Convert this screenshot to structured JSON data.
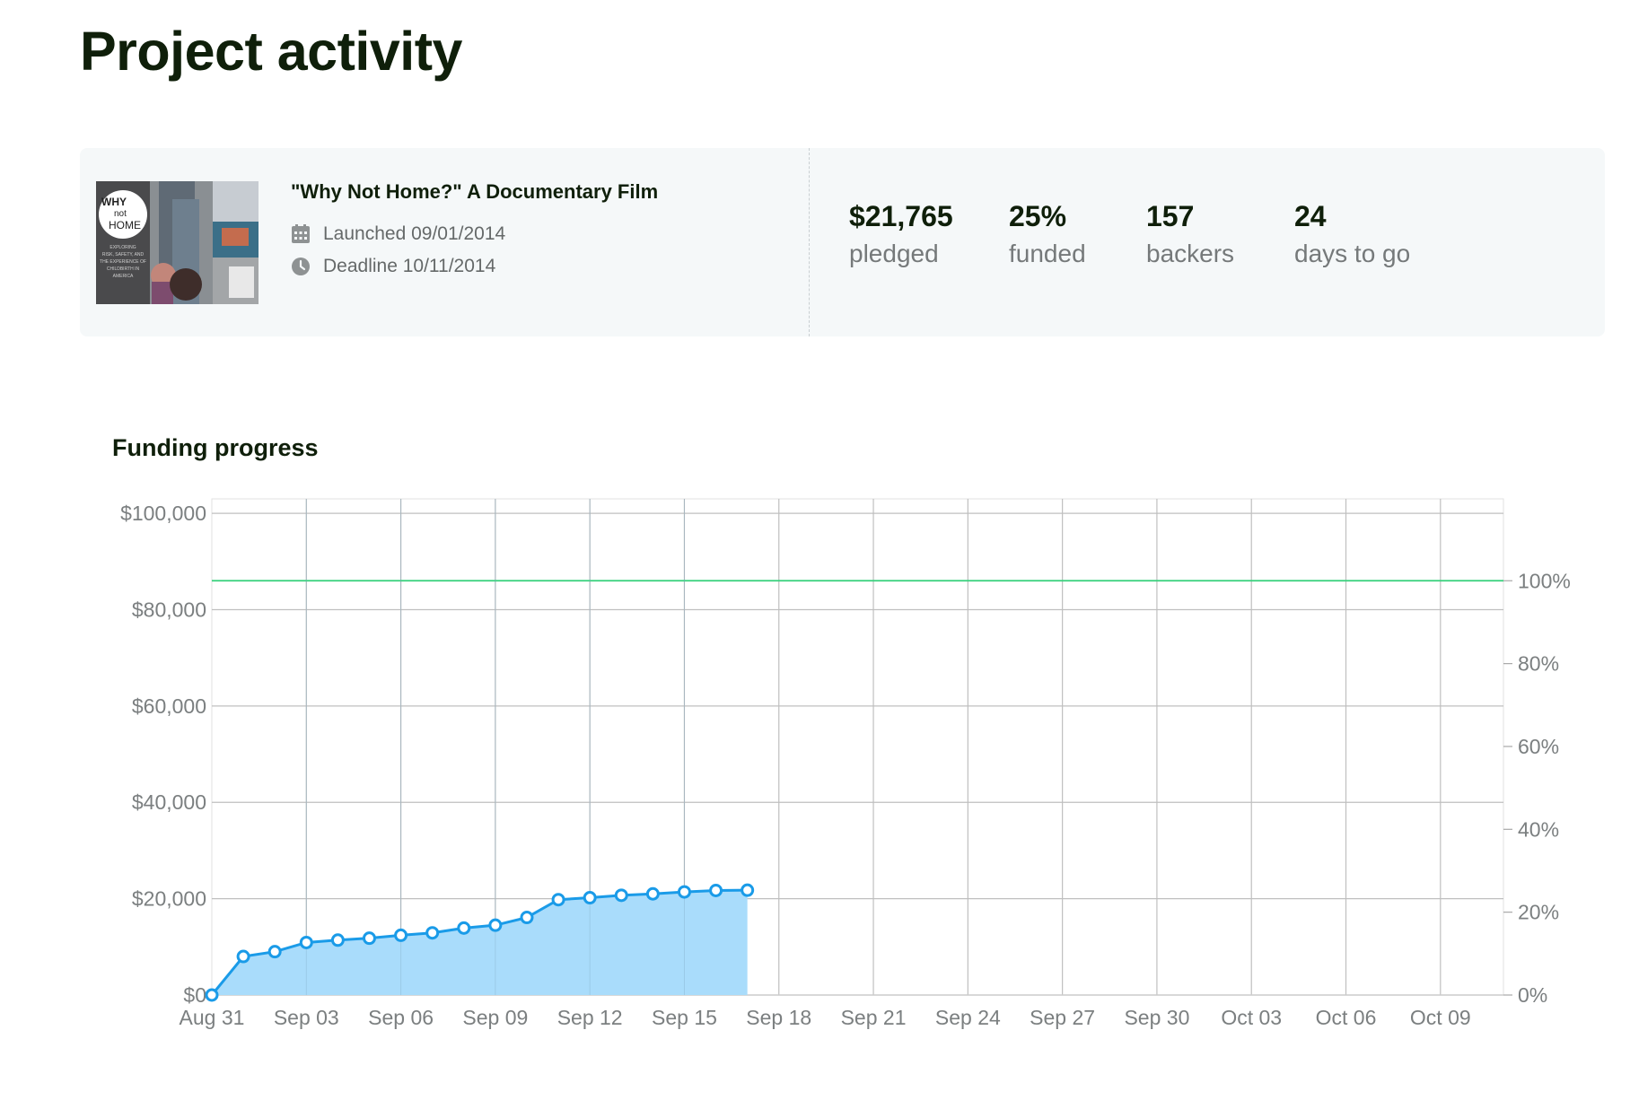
{
  "page": {
    "title": "Project activity"
  },
  "project": {
    "title": "\"Why Not Home?\" A Documentary Film",
    "launched": "Launched 09/01/2014",
    "deadline": "Deadline 10/11/2014",
    "thumbnail": {
      "logo_line1": "WHY",
      "logo_line2": "not",
      "logo_line3": "HOME",
      "tagline": [
        "EXPLORING",
        "RISK, SAFETY, AND",
        "THE EXPERIENCE OF",
        "CHILDBIRTH IN",
        "AMERICA"
      ]
    }
  },
  "stats": [
    {
      "value": "$21,765",
      "label": "pledged"
    },
    {
      "value": "25%",
      "label": "funded"
    },
    {
      "value": "157",
      "label": "backers"
    },
    {
      "value": "24",
      "label": "days to go"
    }
  ],
  "colors": {
    "series_line": "#1a9be8",
    "series_fill": "#a9dcfb",
    "goal_line": "#34d07a",
    "grid": "#bfbfbf",
    "card_bg": "#f5f8f9"
  },
  "icons": {
    "launched": "calendar-icon",
    "deadline": "clock-icon"
  },
  "chart_data": {
    "type": "area",
    "title": "Funding progress",
    "x_tick_labels": [
      "Aug 31",
      "Sep 03",
      "Sep 06",
      "Sep 09",
      "Sep 12",
      "Sep 15",
      "Sep 18",
      "Sep 21",
      "Sep 24",
      "Sep 27",
      "Sep 30",
      "Oct 03",
      "Oct 06",
      "Oct 09"
    ],
    "x_range": [
      "Aug 31",
      "Oct 11"
    ],
    "y_left_ticks": [
      "$0",
      "$20,000",
      "$40,000",
      "$60,000",
      "$80,000",
      "$100,000"
    ],
    "y_left_range": [
      0,
      103000
    ],
    "y_right_ticks": [
      "0%",
      "20%",
      "40%",
      "60%",
      "80%",
      "100%"
    ],
    "y_right_range": [
      0,
      120
    ],
    "goal": 86000,
    "grid": true,
    "series": [
      {
        "dates": [
          "Aug 31",
          "Sep 01",
          "Sep 02",
          "Sep 03",
          "Sep 04",
          "Sep 05",
          "Sep 06",
          "Sep 07",
          "Sep 08",
          "Sep 09",
          "Sep 10",
          "Sep 11",
          "Sep 12",
          "Sep 13",
          "Sep 14",
          "Sep 15",
          "Sep 16",
          "Sep 17"
        ],
        "values": [
          0,
          8000,
          9000,
          10900,
          11400,
          11800,
          12400,
          12900,
          13900,
          14500,
          16100,
          19800,
          20200,
          20700,
          21000,
          21400,
          21700,
          21765
        ]
      }
    ]
  }
}
